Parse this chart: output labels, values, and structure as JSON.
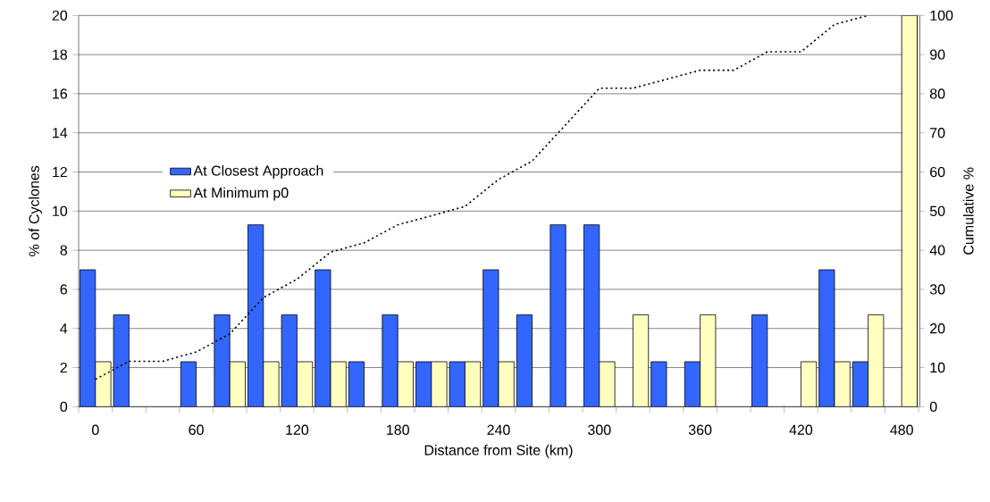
{
  "chart_data": {
    "type": "bar",
    "xlabel": "Distance from Site (km)",
    "ylabel": "% of Cyclones",
    "y2label": "Cumulative %",
    "categories": [
      "0",
      null,
      null,
      "60",
      null,
      null,
      "120",
      null,
      null,
      "180",
      null,
      null,
      "240",
      null,
      null,
      "300",
      null,
      null,
      "360",
      null,
      null,
      "420",
      null,
      null,
      "480"
    ],
    "series": [
      {
        "name": "At Closest Approach",
        "color": "#3366ff",
        "values": [
          7.0,
          4.7,
          0,
          2.3,
          4.7,
          9.3,
          4.7,
          7.0,
          2.3,
          4.7,
          2.3,
          2.3,
          7.0,
          4.7,
          9.3,
          9.3,
          0,
          2.3,
          2.3,
          0,
          4.7,
          0,
          7.0,
          2.3,
          0
        ]
      },
      {
        "name": "At Minimum p0",
        "color": "#ffffc0",
        "values": [
          2.3,
          0,
          0,
          0,
          2.3,
          2.3,
          2.3,
          2.3,
          0,
          2.3,
          2.3,
          2.3,
          2.3,
          0,
          0,
          2.3,
          4.7,
          0,
          4.7,
          0,
          0,
          2.3,
          2.3,
          4.7,
          20
        ]
      },
      {
        "type": "line",
        "axis": "y2",
        "color": "#000000",
        "line_style": "dotted",
        "values": [
          7.0,
          11.6,
          11.6,
          14.0,
          18.6,
          27.9,
          32.6,
          39.5,
          41.9,
          46.5,
          48.8,
          51.2,
          58.1,
          62.8,
          72.1,
          81.4,
          81.4,
          83.7,
          86.0,
          86.0,
          90.7,
          90.7,
          97.7,
          100.0,
          null
        ]
      }
    ],
    "ylim": [
      0,
      20
    ],
    "yticks": [
      0,
      2,
      4,
      6,
      8,
      10,
      12,
      14,
      16,
      18,
      20
    ],
    "y2lim": [
      0,
      100
    ],
    "y2ticks": [
      0,
      10,
      20,
      30,
      40,
      50,
      60,
      70,
      80,
      90,
      100
    ],
    "grid": "y",
    "legend": "left"
  }
}
